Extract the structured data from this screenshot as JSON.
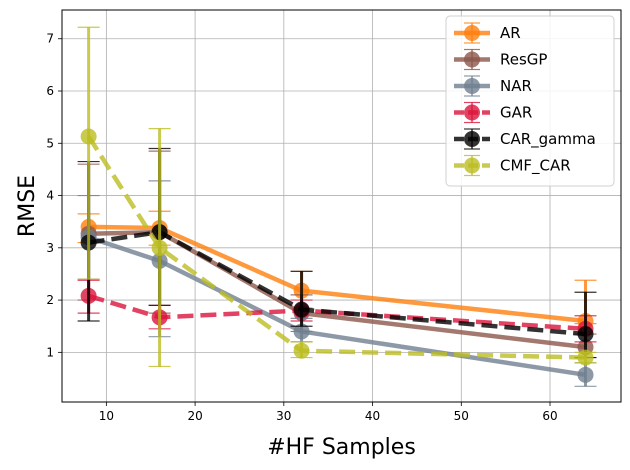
{
  "chart_data": {
    "type": "line",
    "title": "",
    "xlabel": "#HF Samples",
    "ylabel": "RMSE",
    "xlim": [
      5,
      68
    ],
    "ylim": [
      0.05,
      7.55
    ],
    "xticks": [
      10,
      20,
      30,
      40,
      50,
      60
    ],
    "yticks": [
      1,
      2,
      3,
      4,
      5,
      6,
      7
    ],
    "grid": true,
    "legend_position": "top-right",
    "x": [
      8,
      16,
      32,
      64
    ],
    "series": [
      {
        "name": "AR",
        "color": "#ff7f0e",
        "dash": "solid",
        "values": [
          3.4,
          3.38,
          2.18,
          1.6
        ],
        "err_low": [
          3.1,
          3.05,
          1.85,
          1.55
        ],
        "err_high": [
          3.65,
          3.7,
          2.55,
          2.38
        ]
      },
      {
        "name": "ResGP",
        "color": "#8c564b",
        "dash": "solid",
        "values": [
          3.27,
          3.3,
          1.75,
          1.1
        ],
        "err_low": [
          2.0,
          1.75,
          1.4,
          0.9
        ],
        "err_high": [
          4.6,
          4.85,
          2.1,
          1.35
        ]
      },
      {
        "name": "NAR",
        "color": "#708090",
        "dash": "solid",
        "values": [
          3.2,
          2.75,
          1.4,
          0.57
        ],
        "err_low": [
          2.4,
          1.3,
          1.2,
          0.35
        ],
        "err_high": [
          4.0,
          4.28,
          1.65,
          0.8
        ]
      },
      {
        "name": "GAR",
        "color": "#dc143c",
        "dash": "dashed",
        "values": [
          2.08,
          1.67,
          1.8,
          1.45
        ],
        "err_low": [
          1.75,
          1.45,
          1.6,
          1.2
        ],
        "err_high": [
          2.38,
          1.9,
          2.0,
          1.7
        ]
      },
      {
        "name": "CAR_gamma",
        "color": "#000000",
        "dash": "dashed",
        "values": [
          3.1,
          3.3,
          1.82,
          1.35
        ],
        "err_low": [
          1.6,
          1.9,
          1.5,
          0.9
        ],
        "err_high": [
          4.65,
          4.9,
          2.55,
          2.15
        ]
      },
      {
        "name": "CMF_CAR",
        "color": "#bcbd22",
        "dash": "dashed",
        "values": [
          5.13,
          3.0,
          1.03,
          0.9
        ],
        "err_low": [
          2.4,
          0.73,
          0.9,
          0.8
        ],
        "err_high": [
          7.22,
          5.28,
          1.2,
          1.0
        ]
      }
    ]
  }
}
